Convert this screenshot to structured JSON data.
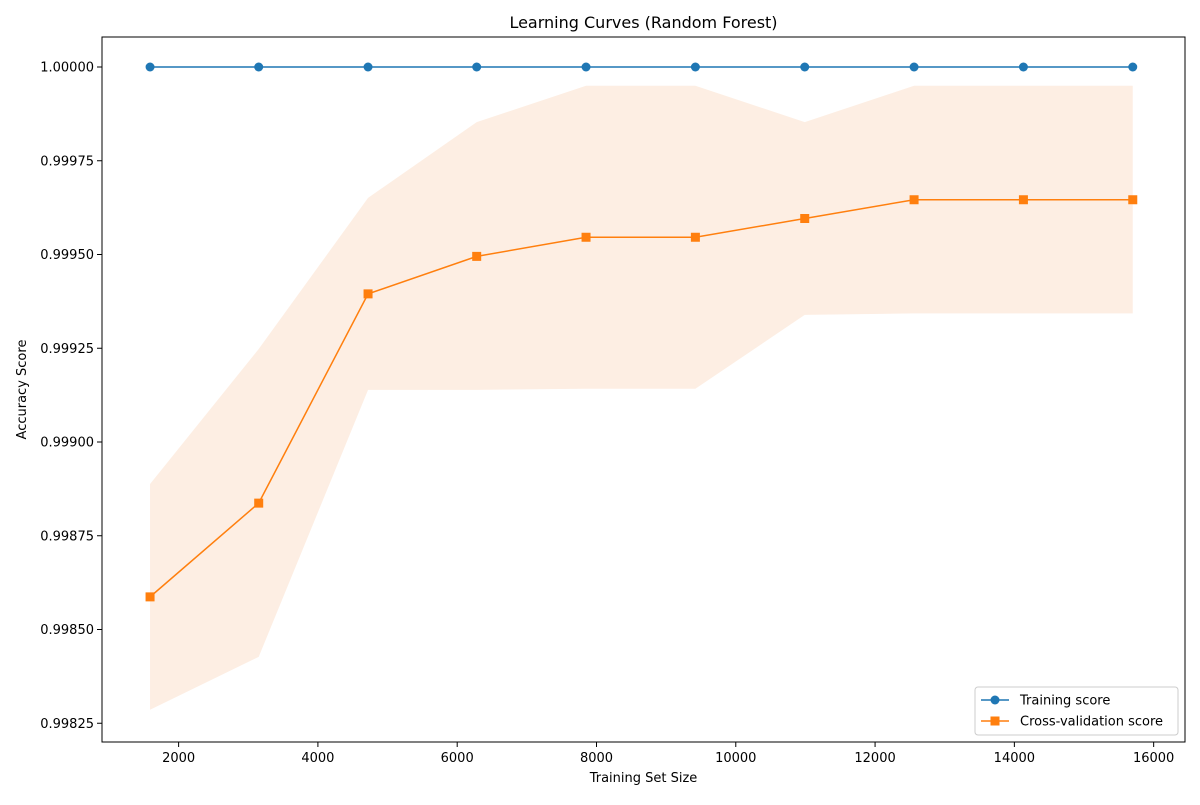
{
  "chart_data": {
    "type": "line",
    "title": "Learning Curves (Random Forest)",
    "xlabel": "Training Set Size",
    "ylabel": "Accuracy Score",
    "xlim": [
      900,
      16450
    ],
    "ylim": [
      0.9982,
      1.00008
    ],
    "x_ticks": [
      2000,
      4000,
      6000,
      8000,
      10000,
      12000,
      14000,
      16000
    ],
    "x_tick_labels": [
      "2000",
      "4000",
      "6000",
      "8000",
      "10000",
      "12000",
      "14000",
      "16000"
    ],
    "y_ticks": [
      0.99825,
      0.9985,
      0.99875,
      0.999,
      0.99925,
      0.9995,
      0.99975,
      1.0
    ],
    "y_tick_labels": [
      "0.99825",
      "0.99850",
      "0.99875",
      "0.99900",
      "0.99925",
      "0.99950",
      "0.99975",
      "1.00000"
    ],
    "x": [
      1590,
      3150,
      4720,
      6280,
      7850,
      9420,
      10990,
      12560,
      14130,
      15700
    ],
    "grid": false,
    "legend_position": "bottom-right",
    "series": [
      {
        "name": "Training score",
        "marker": "circle",
        "color": "#1f77b4",
        "values": [
          1.0,
          1.0,
          1.0,
          1.0,
          1.0,
          1.0,
          1.0,
          1.0,
          1.0,
          1.0
        ],
        "band_upper": [
          1.0,
          1.0,
          1.0,
          1.0,
          1.0,
          1.0,
          1.0,
          1.0,
          1.0,
          1.0
        ],
        "band_lower": [
          1.0,
          1.0,
          1.0,
          1.0,
          1.0,
          1.0,
          1.0,
          1.0,
          1.0,
          1.0
        ]
      },
      {
        "name": "Cross-validation score",
        "marker": "square",
        "color": "#ff7f0e",
        "band_color": "#fdeee3",
        "values": [
          0.998587,
          0.998837,
          0.999395,
          0.999495,
          0.999546,
          0.999546,
          0.999596,
          0.999646,
          0.999646,
          0.999646
        ],
        "band_upper": [
          0.998888,
          0.999248,
          0.999651,
          0.999853,
          0.99995,
          0.99995,
          0.999853,
          0.99995,
          0.99995,
          0.99995
        ],
        "band_lower": [
          0.998286,
          0.998427,
          0.999139,
          0.999139,
          0.999142,
          0.999142,
          0.999339,
          0.999343,
          0.999343,
          0.999343
        ]
      }
    ]
  }
}
